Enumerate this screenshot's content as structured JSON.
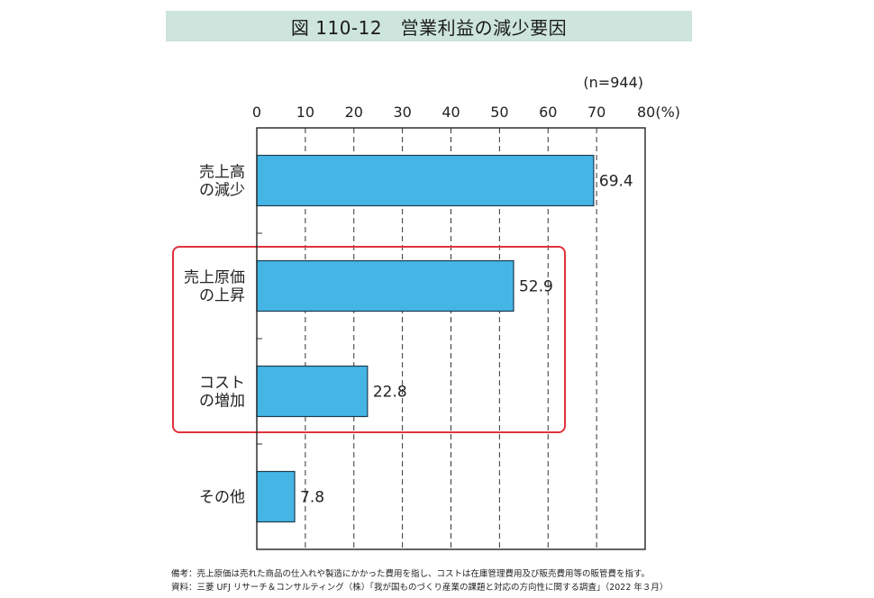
{
  "title": "図 110-12　営業利益の減少要因",
  "chart_data": {
    "type": "bar",
    "orientation": "horizontal",
    "sample_note": "(n=944)",
    "categories": [
      [
        "売上高",
        "の減少"
      ],
      [
        "売上原価",
        "の上昇"
      ],
      [
        "コスト",
        "の増加"
      ],
      [
        "その他"
      ]
    ],
    "values": [
      69.4,
      52.9,
      22.8,
      7.8
    ],
    "value_labels": [
      "69.4",
      "52.9",
      "22.8",
      "7.8"
    ],
    "xlim": [
      0,
      80
    ],
    "ticks": [
      "0",
      "10",
      "20",
      "30",
      "40",
      "50",
      "60",
      "70",
      "80(%)"
    ],
    "grid": true,
    "highlight": [
      1,
      2
    ],
    "colors": {
      "bar": "#45b5e6",
      "bar_edge": "#1d3c4f",
      "highlight": "#e0323c"
    }
  },
  "notes": {
    "remark": "備考：売上原価は売れた商品の仕入れや製造にかかった費用を指し、コストは在庫管理費用及び販売費用等の販管費を指す。",
    "source": "資料：三菱 UFJ リサーチ＆コンサルティング（株）「我が国ものづくり産業の課題と対応の方向性に関する調査」（2022 年３月）"
  }
}
